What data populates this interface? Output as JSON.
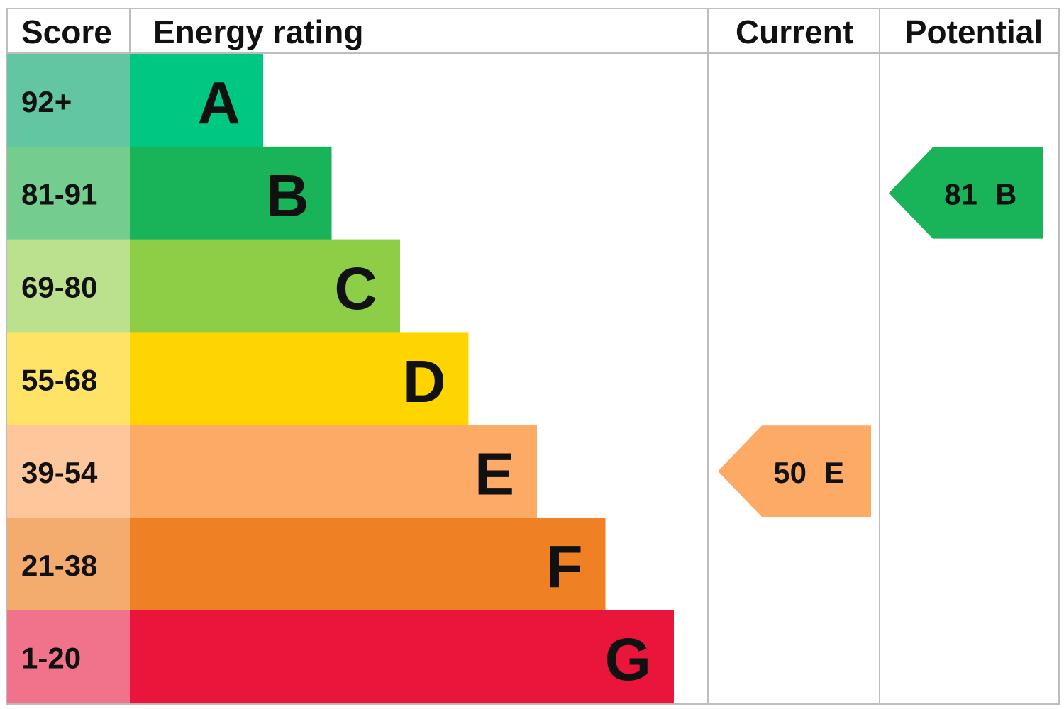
{
  "header": {
    "score": "Score",
    "energy_rating": "Energy rating",
    "current": "Current",
    "potential": "Potential"
  },
  "bands": [
    {
      "score": "92+",
      "rating": "A",
      "color": "#00c781",
      "score_color": "#63c6a2"
    },
    {
      "score": "81-91",
      "rating": "B",
      "color": "#19b459",
      "score_color": "#75cc8f"
    },
    {
      "score": "69-80",
      "rating": "C",
      "color": "#8dce46",
      "score_color": "#bbe08e"
    },
    {
      "score": "55-68",
      "rating": "D",
      "color": "#ffd500",
      "score_color": "#ffe366"
    },
    {
      "score": "39-54",
      "rating": "E",
      "color": "#fcaa65",
      "score_color": "#fdc79b"
    },
    {
      "score": "21-38",
      "rating": "F",
      "color": "#ef8023",
      "score_color": "#f3ab6e"
    },
    {
      "score": "1-20",
      "rating": "G",
      "color": "#e9153b",
      "score_color": "#f1738b"
    }
  ],
  "current": {
    "score": 50,
    "rating": "E"
  },
  "potential": {
    "score": 81,
    "rating": "B"
  }
}
